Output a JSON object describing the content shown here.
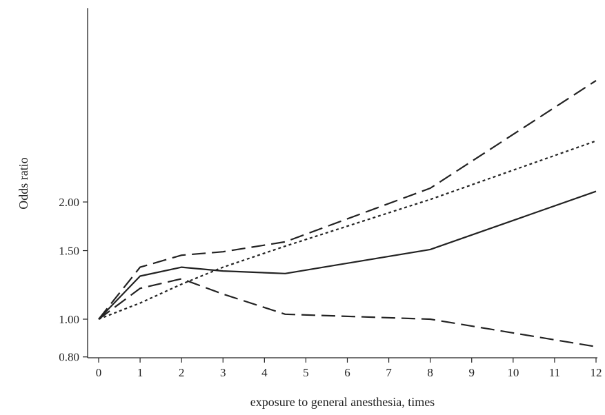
{
  "chart_data": {
    "type": "line",
    "xlabel": "exposure to general anesthesia, times",
    "ylabel": "Odds ratio",
    "xlim": [
      0,
      12
    ],
    "ylim": [
      0.8,
      4.15
    ],
    "y_scale": "log",
    "x_ticks": [
      "0",
      "1",
      "2",
      "3",
      "4",
      "5",
      "6",
      "7",
      "8",
      "9",
      "10",
      "11",
      "12"
    ],
    "y_ticks": [
      {
        "value": 0.8,
        "label": "0.80"
      },
      {
        "value": 1.0,
        "label": "1.00"
      },
      {
        "value": 1.5,
        "label": "1.50"
      },
      {
        "value": 2.0,
        "label": "2.00"
      }
    ],
    "grid": false,
    "series": [
      {
        "style": "solid",
        "points": [
          [
            0,
            1.0
          ],
          [
            1,
            1.29
          ],
          [
            2,
            1.36
          ],
          [
            3,
            1.33
          ],
          [
            4.5,
            1.31
          ],
          [
            8,
            1.51
          ],
          [
            12,
            2.13
          ]
        ]
      },
      {
        "style": "long-dash",
        "points": [
          [
            0,
            1.0
          ],
          [
            1,
            1.36
          ],
          [
            2,
            1.46
          ],
          [
            3,
            1.49
          ],
          [
            4.5,
            1.58
          ],
          [
            8,
            2.17
          ],
          [
            12,
            4.1
          ]
        ]
      },
      {
        "style": "long-dash",
        "points": [
          [
            0,
            1.0
          ],
          [
            1,
            1.2
          ],
          [
            2,
            1.27
          ],
          [
            3,
            1.16
          ],
          [
            4.5,
            1.03
          ],
          [
            8,
            1.0
          ],
          [
            12,
            0.85
          ]
        ]
      },
      {
        "style": "short-dash",
        "points": [
          [
            0,
            1.0
          ],
          [
            1,
            1.1
          ],
          [
            2,
            1.23
          ],
          [
            3,
            1.36
          ],
          [
            4.5,
            1.54
          ],
          [
            8,
            2.03
          ],
          [
            12,
            2.87
          ]
        ]
      }
    ]
  }
}
